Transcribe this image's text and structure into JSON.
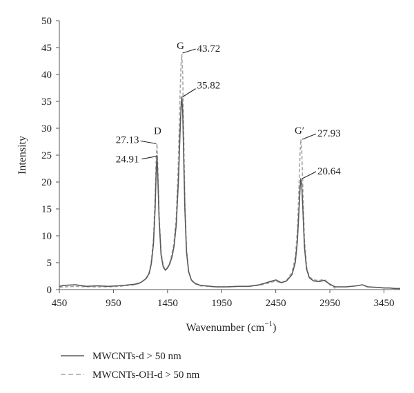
{
  "chart_data": {
    "type": "line",
    "title": "",
    "xlabel_main": "Wavenumber (cm",
    "xlabel_sup": "−1",
    "xlabel_end": ")",
    "ylabel": "Intensity",
    "xlim": [
      450,
      3600
    ],
    "ylim": [
      0,
      50
    ],
    "x_ticks": [
      450,
      950,
      1450,
      1950,
      2450,
      2950,
      3450
    ],
    "y_ticks": [
      0,
      5,
      10,
      15,
      20,
      25,
      30,
      35,
      40,
      45,
      50
    ],
    "grid": false,
    "legend_position": "bottom-left",
    "series": [
      {
        "name": "MWCNTs-d > 50 nm",
        "color": "#595959",
        "style": "solid",
        "x": [
          450,
          500,
          600,
          700,
          800,
          900,
          1000,
          1100,
          1150,
          1200,
          1250,
          1280,
          1300,
          1320,
          1335,
          1345,
          1352,
          1360,
          1372,
          1390,
          1410,
          1430,
          1450,
          1470,
          1490,
          1510,
          1530,
          1550,
          1565,
          1575,
          1582,
          1590,
          1598,
          1610,
          1625,
          1645,
          1670,
          1700,
          1750,
          1800,
          1900,
          2000,
          2100,
          2200,
          2300,
          2400,
          2450,
          2500,
          2550,
          2600,
          2630,
          2650,
          2665,
          2675,
          2682,
          2690,
          2700,
          2715,
          2735,
          2760,
          2800,
          2850,
          2900,
          2950,
          3000,
          3100,
          3200,
          3250,
          3300,
          3400,
          3450,
          3500,
          3550,
          3600
        ],
        "y": [
          0.6,
          0.8,
          0.9,
          0.6,
          0.7,
          0.6,
          0.7,
          0.9,
          1.0,
          1.3,
          2.0,
          3.0,
          4.8,
          8.5,
          15.0,
          22.0,
          24.91,
          21.0,
          13.0,
          6.5,
          4.2,
          3.6,
          4.0,
          4.8,
          6.0,
          8.0,
          12.0,
          20.0,
          29.0,
          34.0,
          35.82,
          33.0,
          26.0,
          15.0,
          7.0,
          3.3,
          1.8,
          1.2,
          0.8,
          0.7,
          0.5,
          0.5,
          0.6,
          0.6,
          0.9,
          1.5,
          1.8,
          1.3,
          1.6,
          2.8,
          5.0,
          9.0,
          15.0,
          19.0,
          20.64,
          19.5,
          15.0,
          8.0,
          3.8,
          2.2,
          1.6,
          1.5,
          1.7,
          1.0,
          0.5,
          0.5,
          0.7,
          0.9,
          0.5,
          0.4,
          0.3,
          0.3,
          0.2,
          0.2
        ]
      },
      {
        "name": "MWCNTs-OH-d > 50 nm",
        "color": "#a6a6a6",
        "style": "dashed",
        "x": [
          450,
          500,
          600,
          700,
          800,
          900,
          1000,
          1100,
          1150,
          1200,
          1250,
          1280,
          1300,
          1320,
          1335,
          1345,
          1352,
          1360,
          1372,
          1390,
          1410,
          1430,
          1450,
          1470,
          1490,
          1510,
          1530,
          1550,
          1565,
          1575,
          1582,
          1590,
          1598,
          1610,
          1625,
          1645,
          1670,
          1700,
          1750,
          1800,
          1900,
          2000,
          2100,
          2200,
          2300,
          2400,
          2450,
          2500,
          2550,
          2600,
          2630,
          2650,
          2665,
          2675,
          2682,
          2690,
          2700,
          2715,
          2735,
          2760,
          2800,
          2850,
          2900,
          2950,
          3000
        ],
        "y": [
          0.4,
          0.5,
          0.6,
          0.5,
          0.5,
          0.5,
          0.6,
          0.8,
          0.9,
          1.2,
          2.1,
          3.2,
          5.2,
          9.5,
          17.0,
          24.5,
          27.13,
          23.0,
          14.0,
          7.0,
          4.4,
          3.7,
          4.1,
          5.0,
          6.5,
          8.8,
          13.5,
          24.0,
          36.0,
          42.0,
          43.72,
          40.0,
          31.0,
          17.0,
          7.5,
          3.4,
          1.8,
          1.1,
          0.7,
          0.6,
          0.5,
          0.5,
          0.6,
          0.6,
          0.8,
          1.3,
          1.6,
          1.2,
          1.7,
          3.2,
          6.0,
          11.0,
          19.5,
          25.5,
          27.93,
          26.0,
          19.0,
          9.5,
          4.2,
          2.4,
          1.8,
          1.7,
          1.9,
          0.9,
          0.2
        ]
      }
    ],
    "annotations": [
      {
        "label": "G",
        "x": 1582,
        "y": 43.72,
        "kind": "peak-letter"
      },
      {
        "label": "43.72",
        "x": 1582,
        "y": 43.72,
        "kind": "value"
      },
      {
        "label": "35.82",
        "x": 1582,
        "y": 35.82,
        "kind": "value"
      },
      {
        "label": "D",
        "x": 1352,
        "y": 27.13,
        "kind": "peak-letter"
      },
      {
        "label": "27.13",
        "x": 1352,
        "y": 27.13,
        "kind": "value"
      },
      {
        "label": "24.91",
        "x": 1352,
        "y": 24.91,
        "kind": "value"
      },
      {
        "label": "G′",
        "x": 2682,
        "y": 27.93,
        "kind": "peak-letter"
      },
      {
        "label": "27.93",
        "x": 2682,
        "y": 27.93,
        "kind": "value"
      },
      {
        "label": "20.64",
        "x": 2682,
        "y": 20.64,
        "kind": "value"
      }
    ]
  }
}
